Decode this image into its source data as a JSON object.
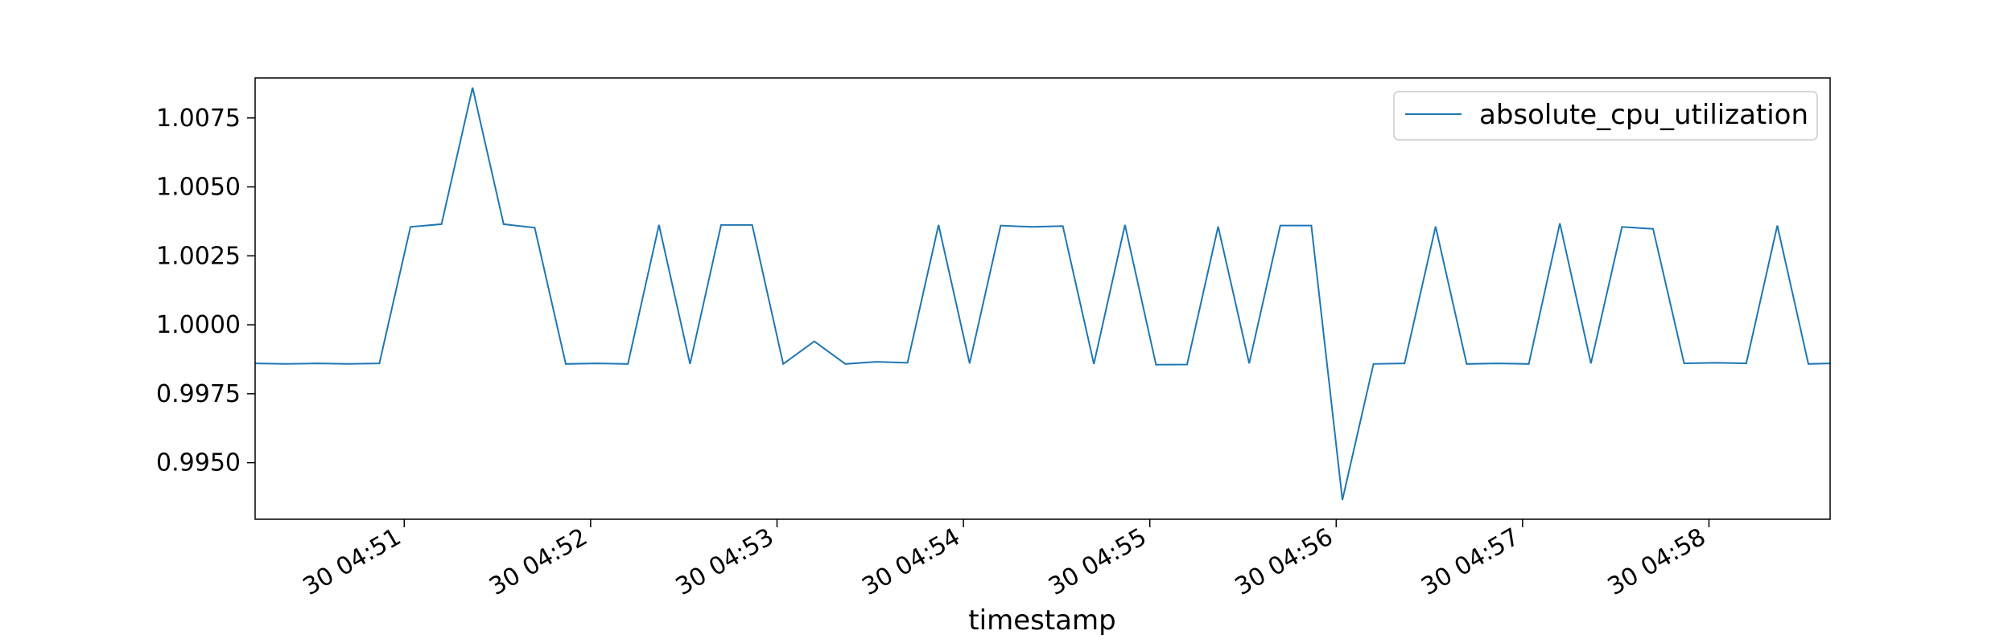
{
  "chart_data": {
    "type": "line",
    "title": "",
    "xlabel": "timestamp",
    "ylabel": "",
    "x_tick_labels": [
      "30 04:51",
      "30 04:52",
      "30 04:53",
      "30 04:54",
      "30 04:55",
      "30 04:56",
      "30 04:57",
      "30 04:58"
    ],
    "x_tick_times": [
      "04:51:00",
      "04:52:00",
      "04:53:00",
      "04:54:00",
      "04:55:00",
      "04:56:00",
      "04:57:00",
      "04:58:00"
    ],
    "x_range": [
      "04:50:12",
      "04:58:39"
    ],
    "y_ticks": [
      0.995,
      0.9975,
      1.0,
      1.0025,
      1.005,
      1.0075
    ],
    "y_tick_labels": [
      "0.9950",
      "0.9975",
      "1.0000",
      "1.0025",
      "1.0050",
      "1.0075"
    ],
    "ylim": [
      0.99295,
      1.00895
    ],
    "grid": false,
    "legend": {
      "position": "top-right"
    },
    "series": [
      {
        "name": "absolute_cpu_utilization",
        "color": "#1f77b4",
        "x": [
          "04:50:12",
          "04:50:22",
          "04:50:32",
          "04:50:42",
          "04:50:52",
          "04:51:02",
          "04:51:12",
          "04:51:22",
          "04:51:32",
          "04:51:42",
          "04:51:52",
          "04:52:02",
          "04:52:12",
          "04:52:22",
          "04:52:32",
          "04:52:42",
          "04:52:52",
          "04:53:02",
          "04:53:12",
          "04:53:22",
          "04:53:32",
          "04:53:42",
          "04:53:52",
          "04:54:02",
          "04:54:12",
          "04:54:22",
          "04:54:32",
          "04:54:42",
          "04:54:52",
          "04:55:02",
          "04:55:12",
          "04:55:22",
          "04:55:32",
          "04:55:42",
          "04:55:52",
          "04:56:02",
          "04:56:12",
          "04:56:22",
          "04:56:32",
          "04:56:42",
          "04:56:52",
          "04:57:02",
          "04:57:12",
          "04:57:22",
          "04:57:32",
          "04:57:42",
          "04:57:52",
          "04:58:02",
          "04:58:12",
          "04:58:22",
          "04:58:32",
          "04:58:39"
        ],
        "values": [
          0.9986,
          0.99858,
          0.9986,
          0.99858,
          0.9986,
          1.00355,
          1.00365,
          1.0086,
          1.00365,
          1.00352,
          0.99858,
          0.9986,
          0.99858,
          1.00362,
          0.99858,
          1.00362,
          1.00362,
          0.99858,
          0.9994,
          0.99858,
          0.99866,
          0.99862,
          1.00362,
          0.9986,
          1.0036,
          1.00355,
          1.00358,
          0.99858,
          1.00362,
          0.99855,
          0.99856,
          1.00356,
          0.9986,
          1.0036,
          1.0036,
          0.99365,
          0.99858,
          0.9986,
          1.00356,
          0.99858,
          0.9986,
          0.99858,
          1.00368,
          0.9986,
          1.00355,
          1.00348,
          0.9986,
          0.99862,
          0.9986,
          1.0036,
          0.99858,
          0.9986
        ]
      }
    ]
  }
}
